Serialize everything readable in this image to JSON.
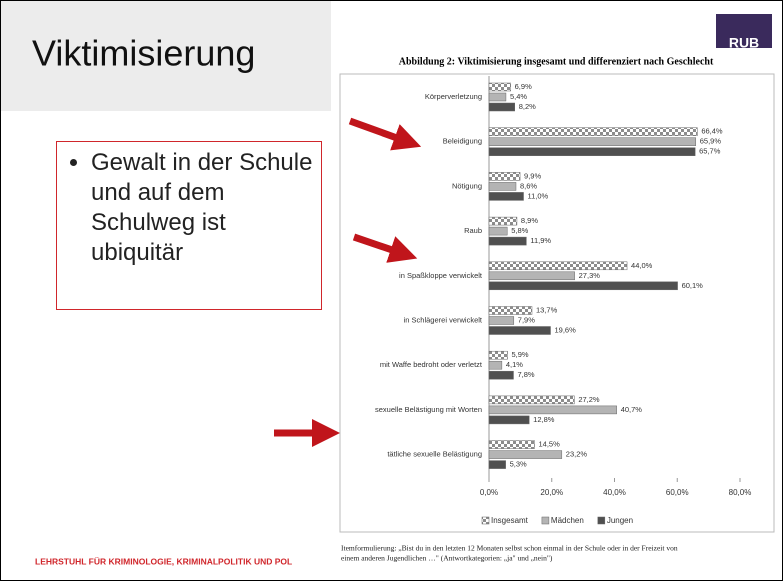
{
  "slide": {
    "title": "Viktimisierung",
    "logo": "RUB",
    "bullet": "Gewalt in der Schule und auf dem Schulweg ist ubiquitär",
    "footer": "LEHRSTUHL FÜR  KRIMINOLOGIE, KRIMINALPOLITIK UND POL",
    "footnote": [
      "Itemformulierung: „Bist du in den letzten 12 Monaten selbst schon einmal in der Schule oder in der Freizeit von",
      "einem anderen Jugendlichen …\" (Antwortkategorien: „ja\" und „nein\")"
    ]
  },
  "chart_data": {
    "type": "bar",
    "orientation": "horizontal",
    "title": "Abbildung 2: Viktimisierung insgesamt und differenziert nach Geschlecht",
    "categories": [
      "Körperverletzung",
      "Beleidigung",
      "Nötigung",
      "Raub",
      "in Spaßkloppe verwickelt",
      "in Schlägerei verwickelt",
      "mit Waffe bedroht oder verletzt",
      "sexuelle Belästigung mit Worten",
      "tätliche sexuelle Belästigung"
    ],
    "series": [
      {
        "name": "Insgesamt",
        "color": "#8c8c8c",
        "pattern": "checker",
        "values": [
          6.9,
          66.4,
          9.9,
          8.9,
          44.0,
          13.7,
          5.9,
          27.2,
          14.5
        ],
        "value_labels": [
          "6,9%",
          "66,4%",
          "9,9%",
          "8,9%",
          "44,0%",
          "13,7%",
          "5,9%",
          "27,2%",
          "14,5%"
        ]
      },
      {
        "name": "Mädchen",
        "color": "#b4b4b4",
        "values": [
          5.4,
          65.9,
          8.6,
          5.8,
          27.3,
          7.9,
          4.1,
          40.7,
          23.2
        ],
        "value_labels": [
          "5,4%",
          "65,9%",
          "8,6%",
          "5,8%",
          "27,3%",
          "7,9%",
          "4,1%",
          "40,7%",
          "23,2%"
        ]
      },
      {
        "name": "Jungen",
        "color": "#505050",
        "values": [
          8.2,
          65.7,
          11.0,
          11.9,
          60.1,
          19.6,
          7.8,
          12.8,
          5.3
        ],
        "value_labels": [
          "8,2%",
          "65,7%",
          "11,0%",
          "11,9%",
          "60,1%",
          "19,6%",
          "7,8%",
          "12,8%",
          "5,3%"
        ]
      }
    ],
    "xlim": [
      0,
      80
    ],
    "xticks": [
      {
        "value": 0,
        "label": "0,0%"
      },
      {
        "value": 20,
        "label": "20,0%"
      },
      {
        "value": 40,
        "label": "40,0%"
      },
      {
        "value": 60,
        "label": "60,0%"
      },
      {
        "value": 80,
        "label": "80,0%"
      }
    ],
    "grid": false,
    "legend": "bottom"
  }
}
